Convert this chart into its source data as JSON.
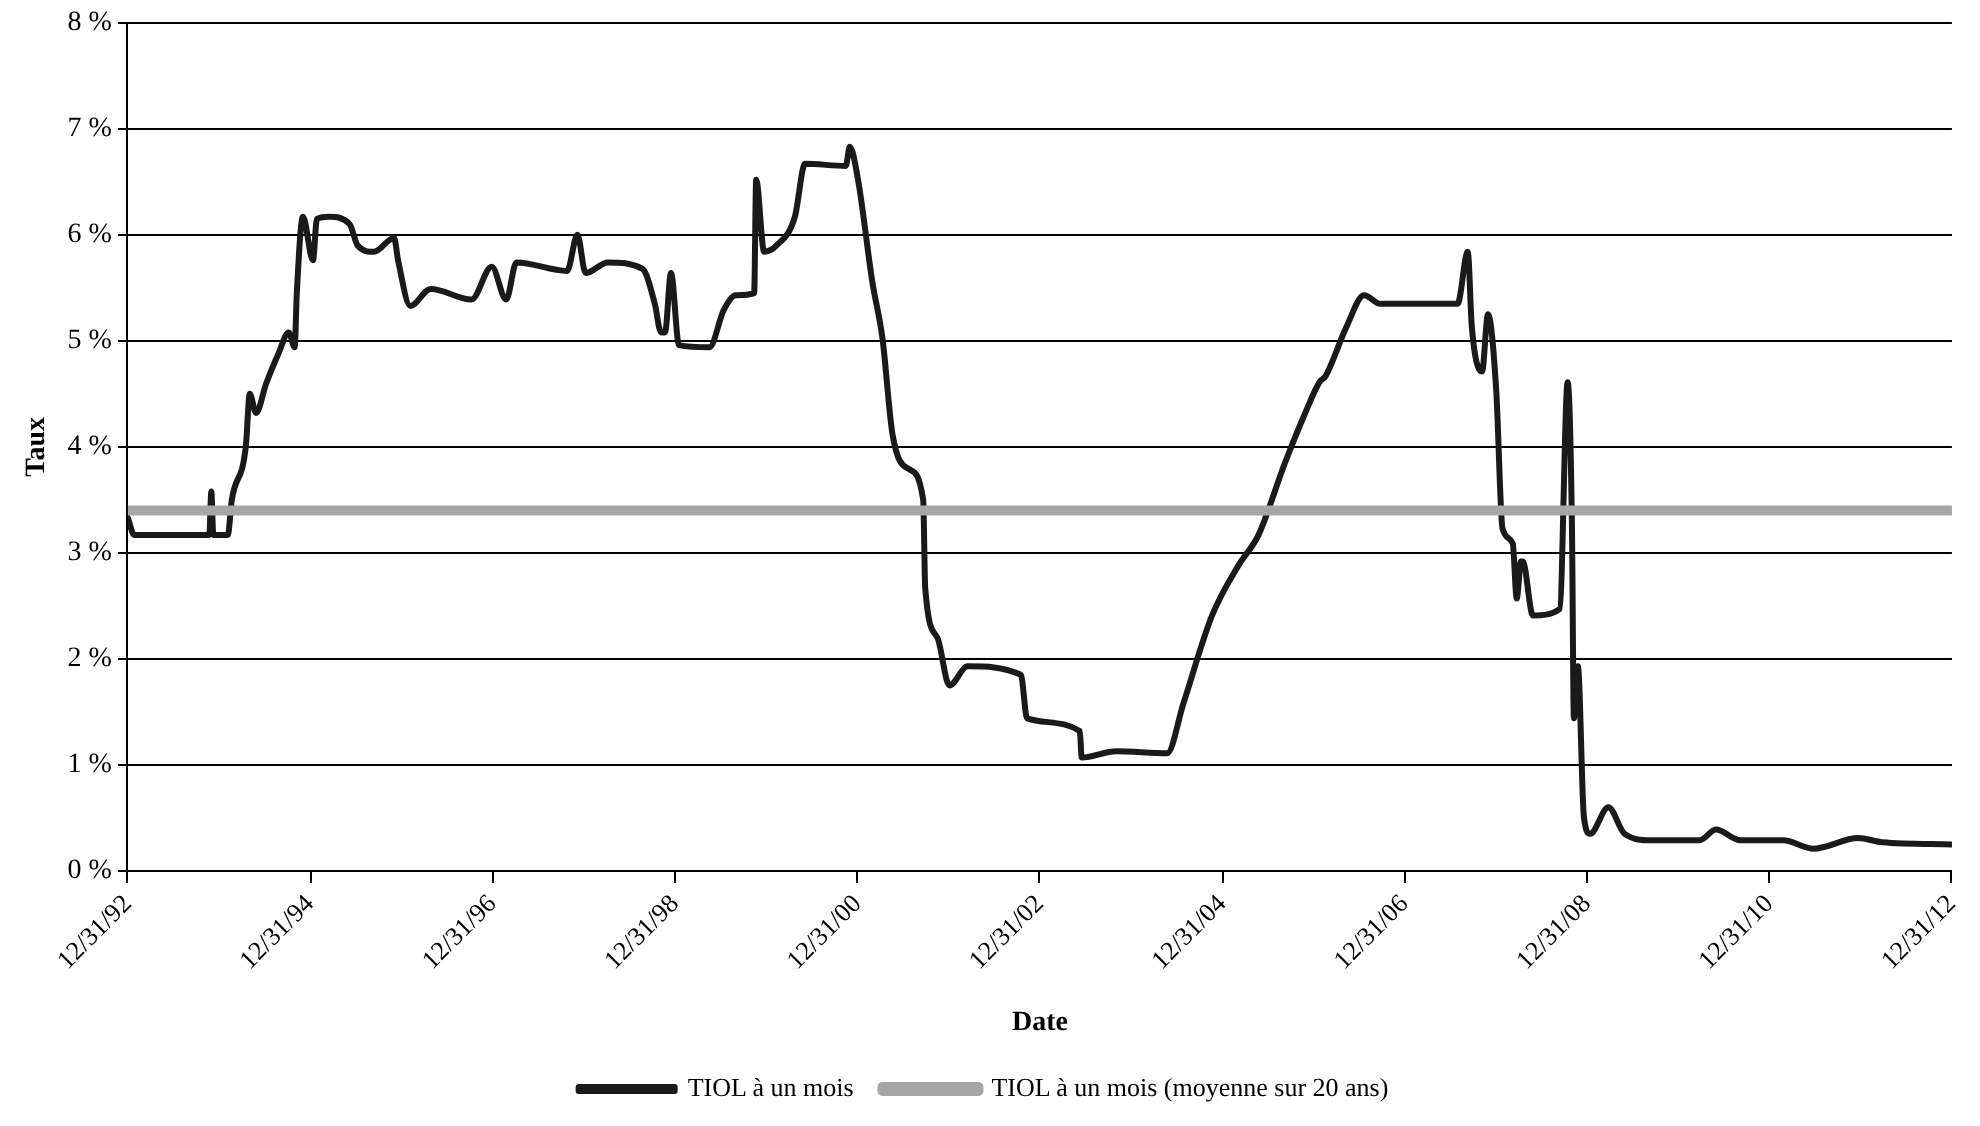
{
  "chart_data": {
    "type": "line",
    "xlabel": "Date",
    "ylabel": "Taux",
    "grid": "y",
    "legend": "bottom",
    "marker": "none",
    "line_style": "solid",
    "xlim": [
      "1992-12-31",
      "2012-12-31"
    ],
    "xticks": [
      {
        "value": "1992-12-31",
        "label": "12/31/92"
      },
      {
        "value": "1994-12-31",
        "label": "12/31/94"
      },
      {
        "value": "1996-12-31",
        "label": "12/31/96"
      },
      {
        "value": "1998-12-31",
        "label": "12/31/98"
      },
      {
        "value": "2000-12-31",
        "label": "12/31/00"
      },
      {
        "value": "2002-12-31",
        "label": "12/31/02"
      },
      {
        "value": "2004-12-31",
        "label": "12/31/04"
      },
      {
        "value": "2006-12-31",
        "label": "12/31/06"
      },
      {
        "value": "2008-12-31",
        "label": "12/31/08"
      },
      {
        "value": "2010-12-31",
        "label": "12/31/10"
      },
      {
        "value": "2012-12-31",
        "label": "12/31/12"
      }
    ],
    "ylim": [
      0,
      8
    ],
    "yticks": [
      {
        "value": 0,
        "label": "0 %"
      },
      {
        "value": 1,
        "label": "1 %"
      },
      {
        "value": 2,
        "label": "2 %"
      },
      {
        "value": 3,
        "label": "3 %"
      },
      {
        "value": 4,
        "label": "4 %"
      },
      {
        "value": 5,
        "label": "5 %"
      },
      {
        "value": 6,
        "label": "6 %"
      },
      {
        "value": 7,
        "label": "7 %"
      },
      {
        "value": 8,
        "label": "8 %"
      }
    ],
    "series": [
      {
        "name": "TIOL à un mois",
        "color": "#1a1a1a",
        "x": [
          "1992-12-31",
          "1993-01-25",
          "1993-11-22",
          "1993-11-30",
          "1993-12-08",
          "1994-02-04",
          "1994-02-20",
          "1994-04-17",
          "1994-05-03",
          "1994-05-28",
          "1994-07-08",
          "1994-08-26",
          "1994-10-06",
          "1994-10-30",
          "1994-11-07",
          "1994-12-02",
          "1995-01-11",
          "1995-01-27",
          "1995-03-17",
          "1995-06-07",
          "1995-07-09",
          "1995-09-12",
          "1995-12-02",
          "1995-12-18",
          "1996-02-05",
          "1996-04-27",
          "1996-10-07",
          "1996-12-27",
          "1997-02-23",
          "1997-04-05",
          "1997-10-25",
          "1997-12-05",
          "1998-01-07",
          "1998-04-06",
          "1998-08-23",
          "1998-10-11",
          "1998-11-05",
          "1998-11-21",
          "1998-12-15",
          "1999-01-16",
          "1999-05-18",
          "1999-07-14",
          "1999-09-01",
          "1999-11-13",
          "1999-11-21",
          "1999-12-23",
          "2000-02-11",
          "2000-04-24",
          "2000-06-04",
          "2000-11-14",
          "2000-11-30",
          "2001-01-02",
          "2001-02-28",
          "2001-04-10",
          "2001-05-20",
          "2001-07-25",
          "2001-09-20",
          "2001-09-28",
          "2001-11-16",
          "2002-01-03",
          "2002-03-17",
          "2002-10-16",
          "2002-11-10",
          "2003-06-09",
          "2003-06-17",
          "2003-11-02",
          "2004-05-24",
          "2004-07-28",
          "2004-11-20",
          "2005-03-05",
          "2005-05-25",
          "2005-09-08",
          "2005-11-28",
          "2006-01-24",
          "2006-02-18",
          "2006-05-10",
          "2006-07-22",
          "2006-09-25",
          "2007-07-31",
          "2007-09-10",
          "2007-09-26",
          "2007-11-06",
          "2007-11-30",
          "2008-01-02",
          "2008-01-27",
          "2008-03-08",
          "2008-03-24",
          "2008-04-10",
          "2008-04-17",
          "2008-05-28",
          "2008-09-12",
          "2008-10-14",
          "2008-10-31",
          "2008-11-08",
          "2008-11-24",
          "2008-12-18",
          "2009-01-12",
          "2009-03-26",
          "2009-05-30",
          "2009-09-13",
          "2010-03-27",
          "2010-05-31",
          "2010-09-06",
          "2011-02-24",
          "2011-06-26",
          "2011-12-21",
          "2012-03-28",
          "2012-12-31"
        ],
        "values": [
          3.33,
          3.17,
          3.17,
          3.58,
          3.17,
          3.17,
          3.5,
          4.0,
          4.5,
          4.32,
          4.6,
          4.88,
          5.08,
          4.94,
          5.43,
          6.17,
          5.76,
          6.15,
          6.17,
          6.1,
          5.9,
          5.84,
          5.97,
          5.76,
          5.33,
          5.49,
          5.39,
          5.7,
          5.39,
          5.74,
          5.66,
          6.0,
          5.64,
          5.74,
          5.68,
          5.35,
          5.08,
          5.08,
          5.64,
          4.96,
          4.94,
          5.29,
          5.43,
          5.45,
          6.52,
          5.84,
          5.9,
          6.17,
          6.67,
          6.65,
          6.83,
          6.52,
          5.56,
          5.02,
          4.12,
          3.79,
          3.5,
          2.67,
          2.2,
          1.75,
          1.93,
          1.85,
          1.44,
          1.32,
          1.07,
          1.13,
          1.11,
          1.58,
          2.41,
          2.88,
          3.17,
          3.85,
          4.32,
          4.61,
          4.67,
          5.12,
          5.43,
          5.35,
          5.35,
          5.84,
          5.14,
          4.71,
          5.25,
          4.53,
          3.23,
          3.09,
          2.57,
          2.92,
          2.92,
          2.41,
          2.47,
          4.61,
          3.29,
          1.44,
          1.93,
          0.51,
          0.35,
          0.6,
          0.35,
          0.29,
          0.29,
          0.39,
          0.29,
          0.29,
          0.21,
          0.31,
          0.27,
          0.25
        ]
      },
      {
        "name": "TIOL à un mois (moyenne sur 20 ans)",
        "color": "#a6a6a6",
        "x": [
          "1992-12-31",
          "2012-12-31"
        ],
        "values": [
          3.4,
          3.4
        ]
      }
    ]
  }
}
